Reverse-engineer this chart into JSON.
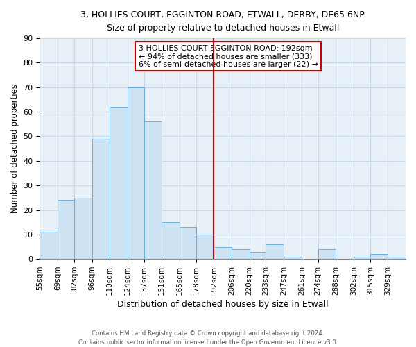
{
  "title": "3, HOLLIES COURT, EGGINTON ROAD, ETWALL, DERBY, DE65 6NP",
  "subtitle": "Size of property relative to detached houses in Etwall",
  "xlabel": "Distribution of detached houses by size in Etwall",
  "ylabel": "Number of detached properties",
  "bar_labels": [
    "55sqm",
    "69sqm",
    "82sqm",
    "96sqm",
    "110sqm",
    "124sqm",
    "137sqm",
    "151sqm",
    "165sqm",
    "178sqm",
    "192sqm",
    "206sqm",
    "220sqm",
    "233sqm",
    "247sqm",
    "261sqm",
    "274sqm",
    "288sqm",
    "302sqm",
    "315sqm",
    "329sqm"
  ],
  "bar_values": [
    11,
    24,
    25,
    49,
    62,
    70,
    56,
    15,
    13,
    10,
    5,
    4,
    3,
    6,
    1,
    0,
    4,
    0,
    1,
    2,
    1
  ],
  "bin_edges": [
    55,
    69,
    82,
    96,
    110,
    124,
    137,
    151,
    165,
    178,
    192,
    206,
    220,
    233,
    247,
    261,
    274,
    288,
    302,
    315,
    329
  ],
  "bar_color": "#cde3f4",
  "bar_edge_color": "#6aaed6",
  "vline_x": 192,
  "vline_color": "#cc0000",
  "ylim": [
    0,
    90
  ],
  "yticks": [
    0,
    10,
    20,
    30,
    40,
    50,
    60,
    70,
    80,
    90
  ],
  "annotation_title": "3 HOLLIES COURT EGGINTON ROAD: 192sqm",
  "annotation_line1": "← 94% of detached houses are smaller (333)",
  "annotation_line2": "6% of semi-detached houses are larger (22) →",
  "annotation_box_color": "#ffffff",
  "annotation_border_color": "#cc0000",
  "footer_line1": "Contains HM Land Registry data © Crown copyright and database right 2024.",
  "footer_line2": "Contains public sector information licensed under the Open Government Licence v3.0.",
  "background_color": "#ffffff",
  "grid_color": "#c8d8e8",
  "plot_bg_color": "#e8f0f8"
}
